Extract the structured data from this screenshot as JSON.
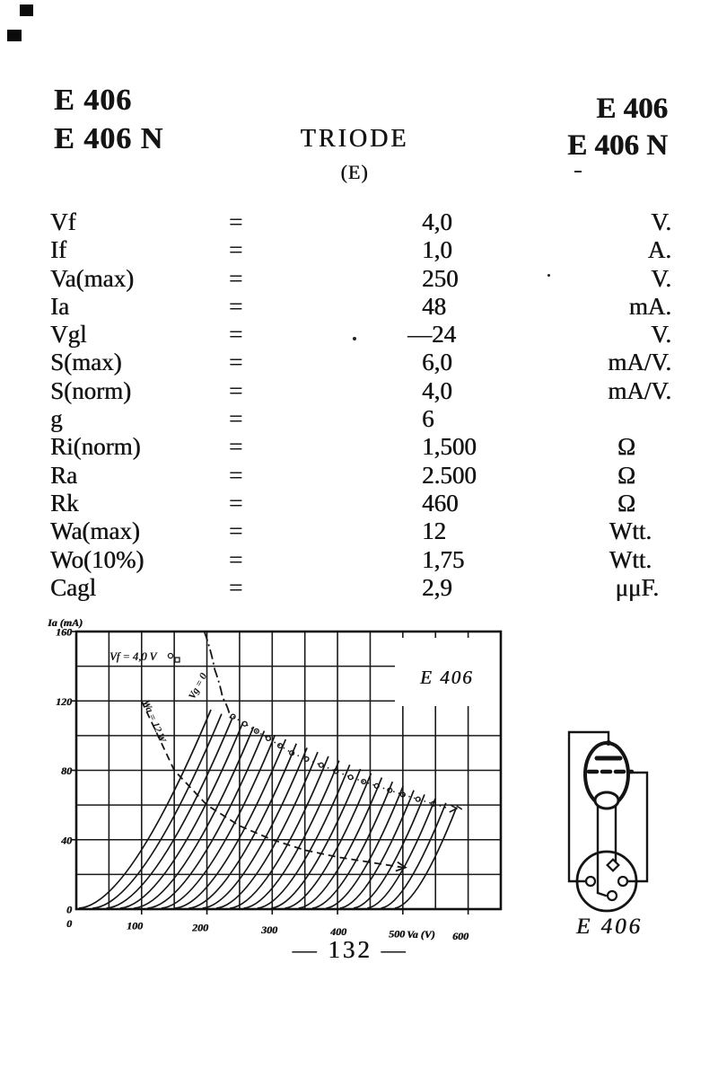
{
  "header": {
    "left_line1": "E 406",
    "left_line2": "E 406 N",
    "center_title": "TRIODE",
    "center_subtitle": "(E)",
    "right_line1": "E 406",
    "right_line2": "E 406 N"
  },
  "specs": {
    "eq_symbol": "=",
    "rows": [
      {
        "param": "Vf",
        "value": "4,0",
        "unit": "V."
      },
      {
        "param": "If",
        "value": "1,0",
        "unit": "A."
      },
      {
        "param": "Va(max)",
        "value": "250",
        "unit": "V."
      },
      {
        "param": "Ia",
        "value": "48",
        "unit": "mA."
      },
      {
        "param": "Vgl",
        "value": "—24",
        "unit": "V."
      },
      {
        "param": "S(max)",
        "value": "6,0",
        "unit": "mA/V."
      },
      {
        "param": "S(norm)",
        "value": "4,0",
        "unit": "mA/V."
      },
      {
        "param": "g",
        "value": "6",
        "unit": ""
      },
      {
        "param": "Ri(norm)",
        "value": "1,500",
        "unit": "Ω"
      },
      {
        "param": "Ra",
        "value": "2.500",
        "unit": "Ω"
      },
      {
        "param": "Rk",
        "value": "460",
        "unit": "Ω"
      },
      {
        "param": "Wa(max)",
        "value": "12",
        "unit": "Wtt."
      },
      {
        "param": "Wo(10%)",
        "value": "1,75",
        "unit": "Wtt."
      },
      {
        "param": "Cagl",
        "value": "2,9",
        "unit": "μμF."
      }
    ]
  },
  "chart_data": {
    "type": "line",
    "title": "E 406",
    "xlabel": "Va (V)",
    "ylabel": "Ia (mA)",
    "xlim": [
      0,
      650
    ],
    "ylim": [
      0,
      160
    ],
    "x_ticks": [
      0,
      100,
      200,
      300,
      400,
      500,
      600
    ],
    "y_ticks": [
      160,
      120,
      80,
      40,
      0
    ],
    "grid": "major grid every 50 V and 20 mA",
    "annotations": [
      {
        "text": "Vf = 4,0 V",
        "x": 120,
        "y": 148
      },
      {
        "text": "Vg = 0",
        "x": 225,
        "y": 125,
        "rotation": -62
      },
      {
        "text": "Wa = 12 W",
        "x": 160,
        "y": 105,
        "rotation": 67
      },
      {
        "text": "E 406",
        "x": 530,
        "y": 132
      }
    ],
    "series": [
      {
        "name": "Ia–Va characteristic family (Vg = 0 to −46 V in 2 V steps)",
        "style": "solid",
        "count": 24
      },
      {
        "name": "Wa = 12 W dissipation limit",
        "style": "dashed",
        "points": [
          [
            100,
            120
          ],
          [
            150,
            80
          ],
          [
            200,
            60
          ],
          [
            250,
            48
          ],
          [
            300,
            40
          ],
          [
            350,
            34
          ],
          [
            400,
            30
          ],
          [
            450,
            27
          ],
          [
            500,
            24
          ]
        ]
      },
      {
        "name": "Vg = 0 boundary",
        "style": "dash-dot",
        "points": [
          [
            196,
            160
          ],
          [
            212,
            138
          ],
          [
            224,
            122
          ],
          [
            236,
            110
          ]
        ]
      },
      {
        "name": "maximum-current envelope",
        "style": "dotted-circles",
        "points": [
          [
            240,
            111
          ],
          [
            330,
            90
          ],
          [
            420,
            76
          ],
          [
            500,
            66
          ],
          [
            570,
            58
          ]
        ]
      }
    ]
  },
  "pinout": {
    "label": "E 406"
  },
  "page_number": "—  132  —"
}
